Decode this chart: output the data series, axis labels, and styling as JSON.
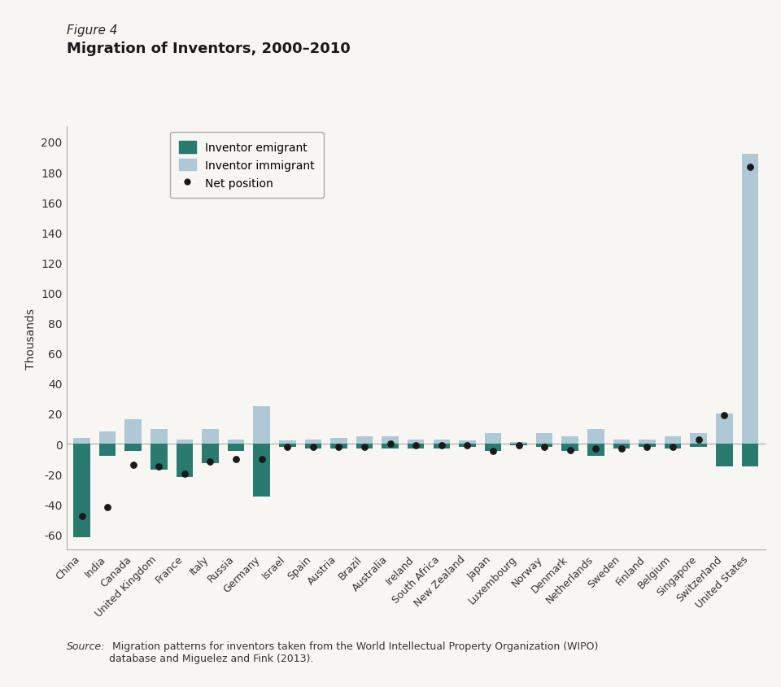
{
  "categories": [
    "China",
    "India",
    "Canada",
    "United Kingdom",
    "France",
    "Italy",
    "Russia",
    "Germany",
    "Israel",
    "Spain",
    "Austria",
    "Brazil",
    "Australia",
    "Ireland",
    "South Africa",
    "New Zealand",
    "Japan",
    "Luxembourg",
    "Norway",
    "Denmark",
    "Netherlands",
    "Sweden",
    "Finland",
    "Belgium",
    "Singapore",
    "Switzerland",
    "United States"
  ],
  "emigrant": [
    -62,
    -8,
    -5,
    -17,
    -22,
    -13,
    -5,
    -35,
    -2,
    -3,
    -3,
    -3,
    -3,
    -3,
    -3,
    -2,
    -5,
    -1,
    -2,
    -5,
    -8,
    -3,
    -2,
    -3,
    -2,
    -15,
    -15
  ],
  "immigrant": [
    4,
    8,
    16,
    10,
    3,
    10,
    3,
    25,
    2,
    3,
    4,
    5,
    5,
    3,
    3,
    2,
    7,
    1,
    7,
    5,
    10,
    3,
    3,
    5,
    7,
    20,
    192
  ],
  "net": [
    -48,
    -42,
    -14,
    -15,
    -20,
    -12,
    -10,
    -10,
    -2,
    -2,
    -2,
    -2,
    0,
    -1,
    -1,
    -1,
    -5,
    -1,
    -2,
    -4,
    -3,
    -3,
    -2,
    -2,
    3,
    19,
    183
  ],
  "emigrant_color": "#2a7b6f",
  "immigrant_color": "#aec9d5",
  "net_color": "#1a1a1a",
  "background_color": "#f7f6f2",
  "figure_label": "Figure 4",
  "title": "Migration of Inventors, 2000–2010",
  "ylabel": "Thousands",
  "ylim": [
    -70,
    210
  ],
  "yticks": [
    -60,
    -40,
    -20,
    0,
    20,
    40,
    60,
    80,
    100,
    120,
    140,
    160,
    180,
    200
  ],
  "legend_labels": [
    "Inventor emigrant",
    "Inventor immigrant",
    "Net position"
  ],
  "source_italic": "Source:",
  "source_normal": " Migration patterns for inventors taken from the World Intellectual Property Organization (WIPO)\ndatabase and Miguelez and Fink (2013)."
}
